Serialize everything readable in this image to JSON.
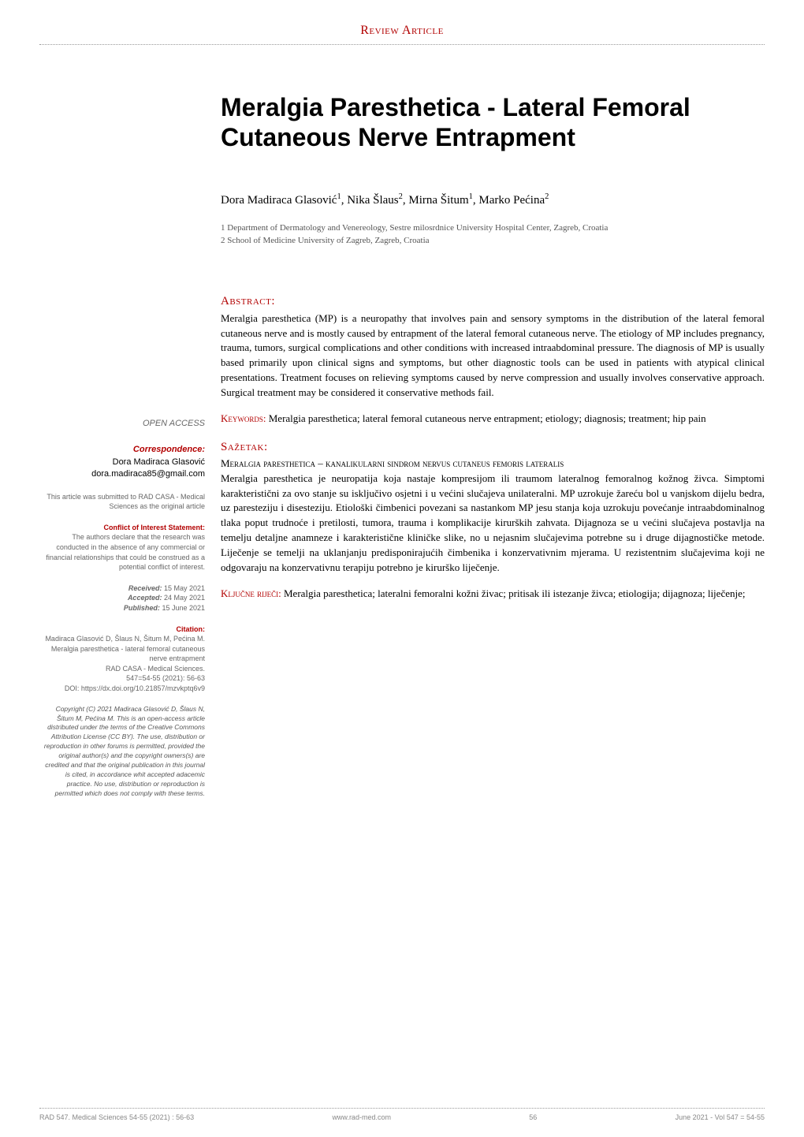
{
  "header": {
    "section_label": "Review Article"
  },
  "article": {
    "title": "Meralgia Paresthetica - Lateral Femoral Cutaneous Nerve Entrapment",
    "authors_html": "Dora Madiraca Glasović<sup>1</sup>, Nika Šlaus<sup>2</sup>, Mirna Šitum<sup>1</sup>, Marko Pećina<sup>2</sup>",
    "affiliations": [
      "1  Department of Dermatology and Venereology, Sestre milosrdnice University Hospital Center, Zagreb, Croatia",
      "2  School of Medicine University of Zagreb, Zagreb, Croatia"
    ]
  },
  "abstract": {
    "heading": "Abstract:",
    "text": "Meralgia paresthetica (MP) is a neuropathy that involves pain and sensory symptoms in the distribution of the lateral femoral cutaneous nerve and is mostly caused by entrapment of the lateral femoral cutaneous nerve. The etiology of MP includes pregnancy, trauma, tumors, surgical complications and other conditions with increased intraabdominal pressure. The diagnosis of MP is usually based primarily upon clinical signs and symptoms, but other diagnostic tools can be used in patients with atypical clinical presentations. Treatment focuses on relieving symptoms caused by nerve compression and usually involves conservative approach. Surgical treatment may be considered it conservative methods fail."
  },
  "keywords": {
    "label": "Keywords:",
    "text": " Meralgia paresthetica; lateral femoral cutaneous nerve entrapment; etiology; diagnosis; treatment; hip pain"
  },
  "sazetak": {
    "heading": "Sažetak:",
    "subtitle": "Meralgia paresthetica – kanalikularni sindrom nervus cutaneus femoris lateralis",
    "text": "Meralgia paresthetica je neuropatija koja nastaje kompresijom ili traumom lateralnog femoralnog kožnog živca. Simptomi karakteristični za ovo stanje su isključivo osjetni i u većini slučajeva unilateralni. MP uzrokuje žareću bol u vanjskom dijelu bedra, uz paresteziju i disesteziju. Etiološki čimbenici povezani sa nastankom MP jesu stanja koja uzrokuju povećanje intraabdominalnog tlaka poput trudnoće i pretilosti, tumora, trauma i komplikacije kirurških zahvata. Dijagnoza se u većini slučajeva postavlja na temelju detaljne anamneze i karakteristične kliničke slike, no u nejasnim slučajevima potrebne su i druge dijagnostičke metode. Liječenje se temelji na uklanjanju predisponirajućih čimbenika i konzervativnim mjerama. U rezistentnim slučajevima koji ne odgovaraju na konzervativnu terapiju potrebno je kirurško liječenje."
  },
  "kljucne": {
    "label": "Ključne riječi:",
    "text": " Meralgia paresthetica; lateralni femoralni kožni živac; pritisak ili istezanje živca; etiologija; dijagnoza; liječenje;"
  },
  "sidebar": {
    "open_access": "OPEN ACCESS",
    "correspondence": {
      "label": "Correspondence:",
      "name": "Dora Madiraca Glasović",
      "email": "dora.madiraca85@gmail.com"
    },
    "submitted_note": "This article was submitted to RAD CASA - Medical Sciences as the original article",
    "conflict": {
      "label": "Conflict of Interest Statement:",
      "text": "The authors declare that the research was conducted in the absence of any commercial or financial relationships that could be construed as a potential conflict of interest."
    },
    "dates": {
      "received_label": "Received:",
      "received": " 15 May 2021",
      "accepted_label": "Accepted:",
      "accepted": " 24 May 2021",
      "published_label": "Published:",
      "published": " 15 June 2021"
    },
    "citation": {
      "label": "Citation:",
      "text": "Madiraca Glasović D, Šlaus N, Šitum M, Pećina M. Meralgia paresthetica - lateral femoral cutaneous nerve entrapment",
      "journal": "RAD CASA - Medical Sciences.",
      "ref": "547=54-55 (2021): 56-63",
      "doi": "DOI: https://dx.doi.org/10.21857/mzvkptq6v9"
    },
    "copyright": "Copyright (C) 2021 Madiraca Glasović D, Šlaus N, Šitum M, Pećina M. This is an open-access article distributed under the terms of the Creative Commons Attribution License (CC BY). The use, distribution or reproduction in other forums is permitted, provided the original author(s) and the copyright owners(s) are credited and that the original publication in this journal is cited, in accordance whit accepted adacemic practice. No use, distribution or reproduction is permitted which does not comply with these terms."
  },
  "footer": {
    "left": "RAD 547. Medical Sciences 54-55 (2021) : 56-63",
    "center_site": "www.rad-med.com",
    "center_page": "56",
    "right": "June 2021  -  Vol 547 = 54-55"
  },
  "colors": {
    "accent": "#b20000",
    "text": "#000000",
    "muted": "#666666",
    "background": "#ffffff"
  }
}
